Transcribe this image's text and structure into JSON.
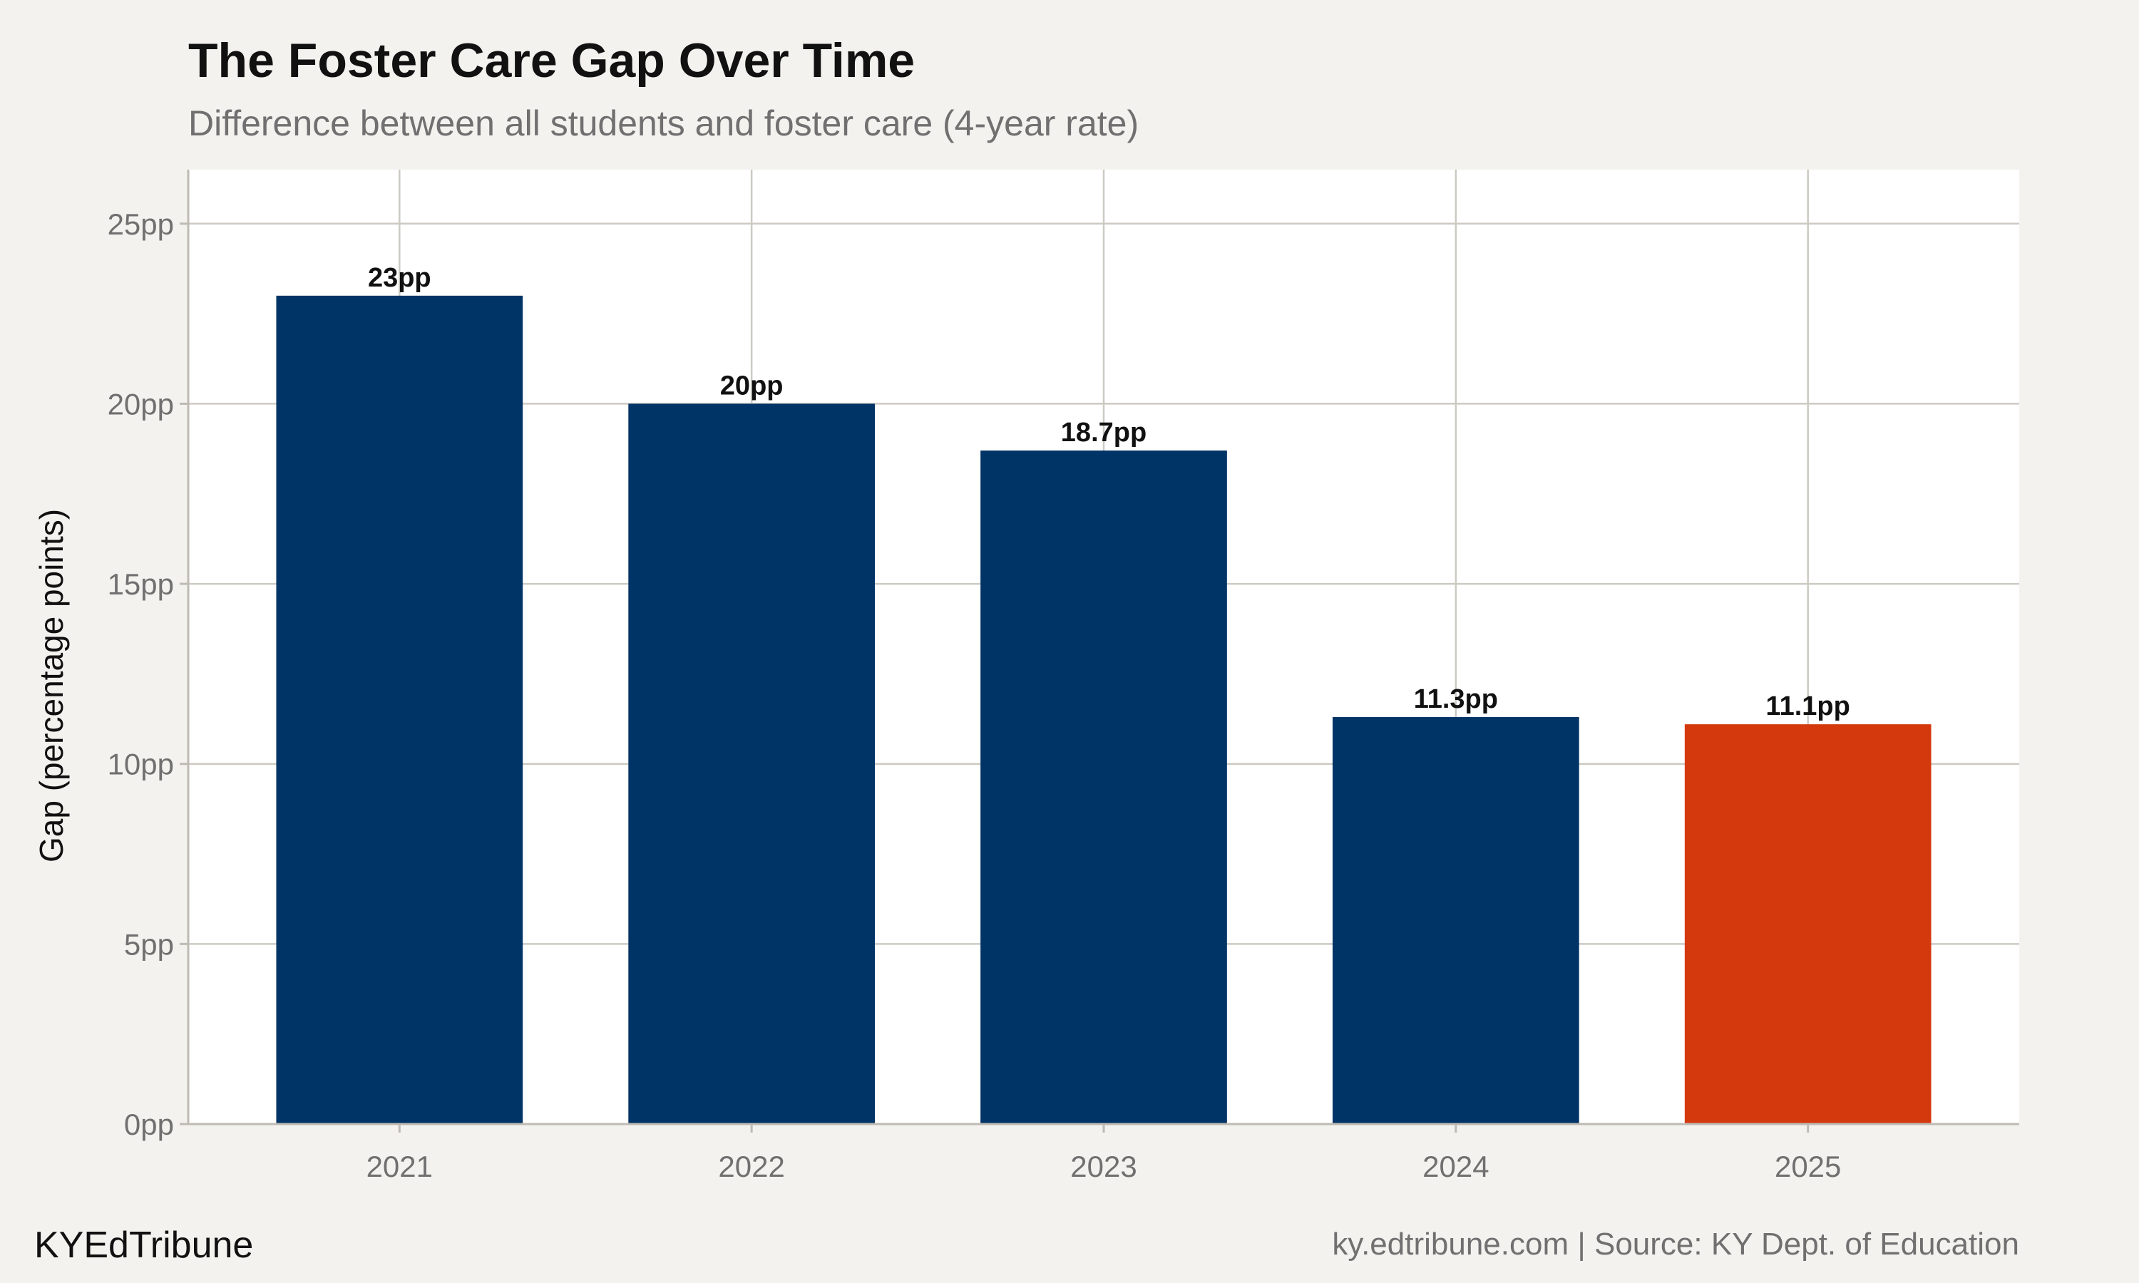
{
  "chart_data": {
    "type": "bar",
    "title": "The Foster Care Gap Over Time",
    "subtitle": "Difference between all students and foster care (4-year rate)",
    "xlabel": "",
    "ylabel": "Gap (percentage points)",
    "categories": [
      "2021",
      "2022",
      "2023",
      "2024",
      "2025"
    ],
    "values": [
      23,
      20,
      18.7,
      11.3,
      11.1
    ],
    "data_labels": [
      "23pp",
      "20pp",
      "18.7pp",
      "11.3pp",
      "11.1pp"
    ],
    "ylim": [
      0,
      26.5
    ],
    "yticks": [
      0,
      5,
      10,
      15,
      20,
      25
    ],
    "ytick_labels": [
      "0pp",
      "5pp",
      "10pp",
      "15pp",
      "20pp",
      "25pp"
    ],
    "grid": true,
    "legend": "none",
    "highlight_index": 4,
    "colors": {
      "bar": "#003366",
      "highlight": "#d4380d",
      "panel": "#ffffff",
      "background": "#f4f2ee"
    }
  },
  "footer": {
    "brand": "KYEdTribune",
    "source": "ky.edtribune.com | Source: KY Dept. of Education"
  }
}
